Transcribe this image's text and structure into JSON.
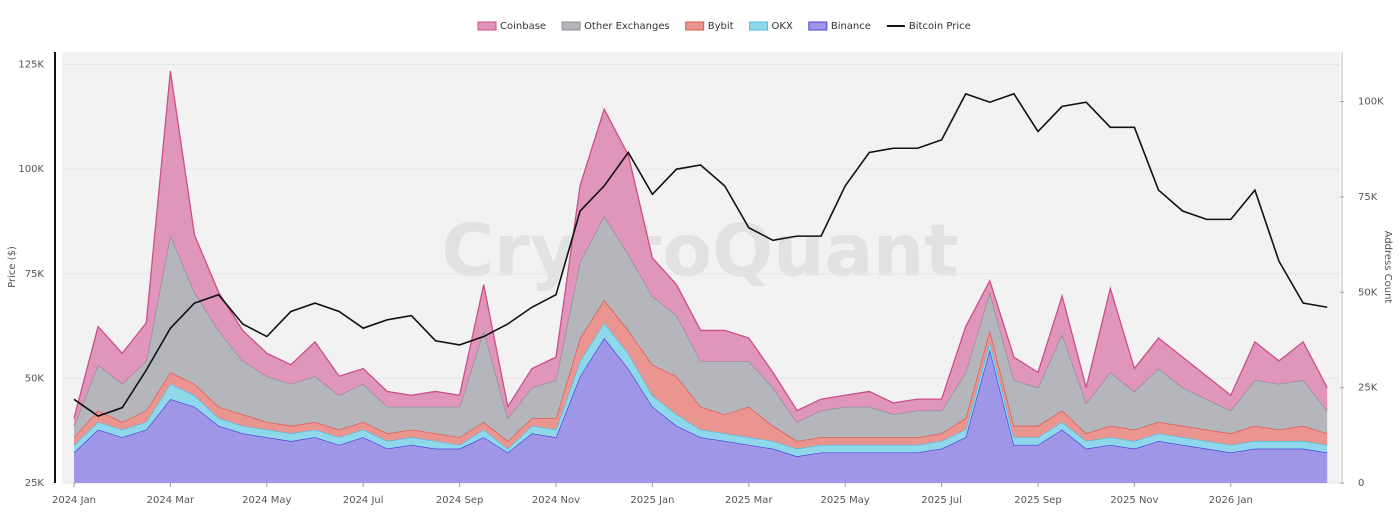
{
  "chart_data": {
    "type": "area",
    "stacked": true,
    "watermark": "CryptoQuant",
    "y_label": "Price ($)",
    "y2_label": "Address Count",
    "categories": [
      "2024 Jan",
      null,
      null,
      null,
      "2024 Mar",
      null,
      null,
      null,
      "2024 May",
      null,
      null,
      null,
      "2024 Jul",
      null,
      null,
      null,
      "2024 Sep",
      null,
      null,
      null,
      "2024 Nov",
      null,
      null,
      null,
      "2025 Jan",
      null,
      null,
      null,
      "2025 Mar",
      null,
      null,
      null,
      "2025 May",
      null,
      null,
      null,
      "2025 Jul",
      null,
      null,
      null,
      "2025 Sep",
      null,
      null,
      null,
      "2025 Nov",
      null,
      null,
      null,
      "2026 Jan",
      null,
      null,
      null,
      null
    ],
    "ylim": [
      25000,
      128000
    ],
    "yticks": [
      {
        "value": 25000,
        "label": "25K"
      },
      {
        "value": 50000,
        "label": "50K"
      },
      {
        "value": 75000,
        "label": "75K"
      },
      {
        "value": 100000,
        "label": "100K"
      },
      {
        "value": 125000,
        "label": "125K"
      }
    ],
    "y2lim": [
      0,
      113000
    ],
    "y2ticks": [
      0,
      {
        "value": 25000,
        "label": "25K"
      },
      {
        "value": 50000,
        "label": "50K"
      },
      {
        "value": 75000,
        "label": "75K"
      },
      {
        "value": 100000,
        "label": "100K"
      }
    ],
    "grid": true,
    "legend": "top",
    "series": [
      {
        "name": "Coinbase",
        "type": "area",
        "axis": "y2",
        "color": "#e095bb",
        "stroke": "#cc4f88",
        "values": [
          2000,
          10000,
          8000,
          10000,
          43000,
          15000,
          10000,
          8000,
          6000,
          5000,
          9000,
          5000,
          4000,
          4000,
          3000,
          4000,
          3000,
          12000,
          3000,
          5000,
          6000,
          20000,
          28000,
          26000,
          10000,
          8000,
          8000,
          8000,
          6000,
          4000,
          3000,
          3000,
          3000,
          4000,
          3000,
          3000,
          3000,
          12000,
          3000,
          6000,
          4000,
          10000,
          4000,
          22000,
          6000,
          8000,
          8000,
          6000,
          4000,
          10000,
          6000,
          10000,
          6000
        ]
      },
      {
        "name": "Other Exchanges",
        "type": "area",
        "axis": "y2",
        "color": "#b5b5bc",
        "stroke": "#8c8c94",
        "values": [
          3000,
          12000,
          10000,
          13000,
          36000,
          24000,
          20000,
          14000,
          12000,
          11000,
          12000,
          9000,
          10000,
          7000,
          6000,
          7000,
          8000,
          24000,
          6000,
          8000,
          10000,
          20000,
          22000,
          20000,
          18000,
          16000,
          12000,
          14000,
          12000,
          10000,
          5000,
          7000,
          8000,
          8000,
          6000,
          7000,
          6000,
          12000,
          10000,
          12000,
          10000,
          20000,
          8000,
          14000,
          10000,
          14000,
          10000,
          8000,
          6000,
          12000,
          12000,
          12000,
          6000
        ]
      },
      {
        "name": "Bybit",
        "type": "area",
        "axis": "y2",
        "color": "#eb9590",
        "stroke": "#e0554c",
        "values": [
          2000,
          3000,
          2000,
          3000,
          3000,
          3000,
          3000,
          3000,
          2000,
          2000,
          2000,
          2000,
          2000,
          2000,
          2000,
          2000,
          2000,
          2000,
          2000,
          2000,
          3000,
          6000,
          6000,
          6000,
          8000,
          10000,
          6000,
          5000,
          8000,
          4000,
          2000,
          2000,
          2000,
          2000,
          2000,
          2000,
          2000,
          3000,
          3000,
          3000,
          3000,
          3000,
          2000,
          3000,
          3000,
          3000,
          3000,
          3000,
          3000,
          4000,
          3000,
          4000,
          3000
        ]
      },
      {
        "name": "OKX",
        "type": "area",
        "axis": "y2",
        "color": "#8fd8ec",
        "stroke": "#4fbfe0",
        "values": [
          2000,
          2000,
          2000,
          2000,
          4000,
          3000,
          2000,
          2000,
          2000,
          2000,
          2000,
          2000,
          2000,
          2000,
          2000,
          2000,
          1000,
          2000,
          1000,
          2000,
          2000,
          4000,
          4000,
          4000,
          3000,
          3000,
          2000,
          2000,
          2000,
          2000,
          2000,
          2000,
          2000,
          2000,
          2000,
          2000,
          2000,
          2000,
          2000,
          2000,
          2000,
          2000,
          2000,
          2000,
          2000,
          2000,
          2000,
          2000,
          2000,
          2000,
          2000,
          2000,
          2000
        ]
      },
      {
        "name": "Binance",
        "type": "area",
        "axis": "y2",
        "color": "#a096e8",
        "stroke": "#4b3fd6",
        "values": [
          8000,
          14000,
          12000,
          14000,
          22000,
          20000,
          15000,
          13000,
          12000,
          11000,
          12000,
          10000,
          12000,
          9000,
          10000,
          9000,
          9000,
          12000,
          8000,
          13000,
          12000,
          28000,
          38000,
          30000,
          20000,
          15000,
          12000,
          11000,
          10000,
          9000,
          7000,
          8000,
          8000,
          8000,
          8000,
          8000,
          9000,
          12000,
          35000,
          10000,
          10000,
          14000,
          9000,
          10000,
          9000,
          11000,
          10000,
          9000,
          8000,
          9000,
          9000,
          9000,
          8000
        ]
      },
      {
        "name": "Bitcoin Price",
        "type": "line",
        "axis": "y",
        "color": "#111111",
        "values": [
          45000,
          41000,
          43000,
          52000,
          62000,
          68000,
          70000,
          63000,
          60000,
          66000,
          68000,
          66000,
          62000,
          64000,
          65000,
          59000,
          58000,
          60000,
          63000,
          67000,
          70000,
          90000,
          96000,
          104000,
          94000,
          100000,
          101000,
          96000,
          86000,
          83000,
          84000,
          84000,
          96000,
          104000,
          105000,
          105000,
          107000,
          118000,
          116000,
          118000,
          109000,
          115000,
          116000,
          110000,
          110000,
          95000,
          90000,
          88000,
          88000,
          95000,
          78000,
          68000,
          67000
        ]
      }
    ]
  }
}
